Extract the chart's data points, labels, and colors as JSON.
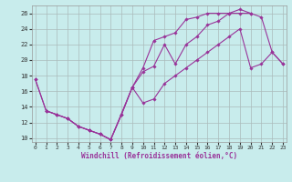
{
  "bg_color": "#c8ecec",
  "line_color": "#993399",
  "grid_color": "#aabbbb",
  "xlabel": "Windchill (Refroidissement éolien,°C)",
  "xlim": [
    -0.3,
    23.3
  ],
  "ylim": [
    9.5,
    27
  ],
  "xticks": [
    0,
    1,
    2,
    3,
    4,
    5,
    6,
    7,
    8,
    9,
    10,
    11,
    12,
    13,
    14,
    15,
    16,
    17,
    18,
    19,
    20,
    21,
    22,
    23
  ],
  "yticks": [
    10,
    12,
    14,
    16,
    18,
    20,
    22,
    24,
    26
  ],
  "line1_x": [
    0,
    1,
    2,
    3,
    4,
    5,
    6,
    7,
    9,
    10,
    11,
    12,
    13,
    14,
    15,
    16,
    17,
    18,
    19,
    20
  ],
  "line1_y": [
    17.5,
    13.5,
    13.0,
    12.5,
    11.5,
    11.0,
    10.5,
    9.8,
    16.5,
    19.0,
    22.5,
    23.0,
    23.5,
    25.2,
    25.5,
    26.0,
    26.0,
    26.0,
    26.5,
    26.0
  ],
  "line2_x": [
    0,
    1,
    2,
    3,
    4,
    5,
    6,
    7,
    8,
    9,
    10,
    11,
    12,
    13,
    14,
    15,
    16,
    17,
    18,
    19,
    20,
    21,
    22,
    23
  ],
  "line2_y": [
    17.5,
    13.5,
    13.0,
    12.5,
    11.5,
    11.0,
    10.5,
    9.8,
    13.0,
    16.5,
    18.5,
    19.2,
    22.0,
    19.5,
    22.0,
    23.0,
    24.5,
    25.0,
    26.0,
    26.0,
    26.0,
    25.5,
    21.0,
    19.5
  ],
  "line3_x": [
    1,
    2,
    3,
    4,
    5,
    6,
    7,
    8,
    9,
    10,
    11,
    12,
    13,
    14,
    15,
    16,
    17,
    18,
    19,
    20,
    21,
    22,
    23
  ],
  "line3_y": [
    13.5,
    13.0,
    12.5,
    11.5,
    11.0,
    10.5,
    9.8,
    13.0,
    16.5,
    14.5,
    15.0,
    17.0,
    18.0,
    19.0,
    20.0,
    21.0,
    22.0,
    23.0,
    24.0,
    19.0,
    19.5,
    21.0,
    19.5
  ],
  "line1_markers_x": [
    0,
    1,
    2,
    3,
    4,
    5,
    6,
    7,
    9,
    10,
    11,
    12,
    13,
    14,
    15,
    16,
    17,
    18,
    19,
    20
  ],
  "line1_markers_y": [
    17.5,
    13.5,
    13.0,
    12.5,
    11.5,
    11.0,
    10.5,
    9.8,
    16.5,
    19.0,
    22.5,
    23.0,
    23.5,
    25.2,
    25.5,
    26.0,
    26.0,
    26.0,
    26.5,
    26.0
  ]
}
